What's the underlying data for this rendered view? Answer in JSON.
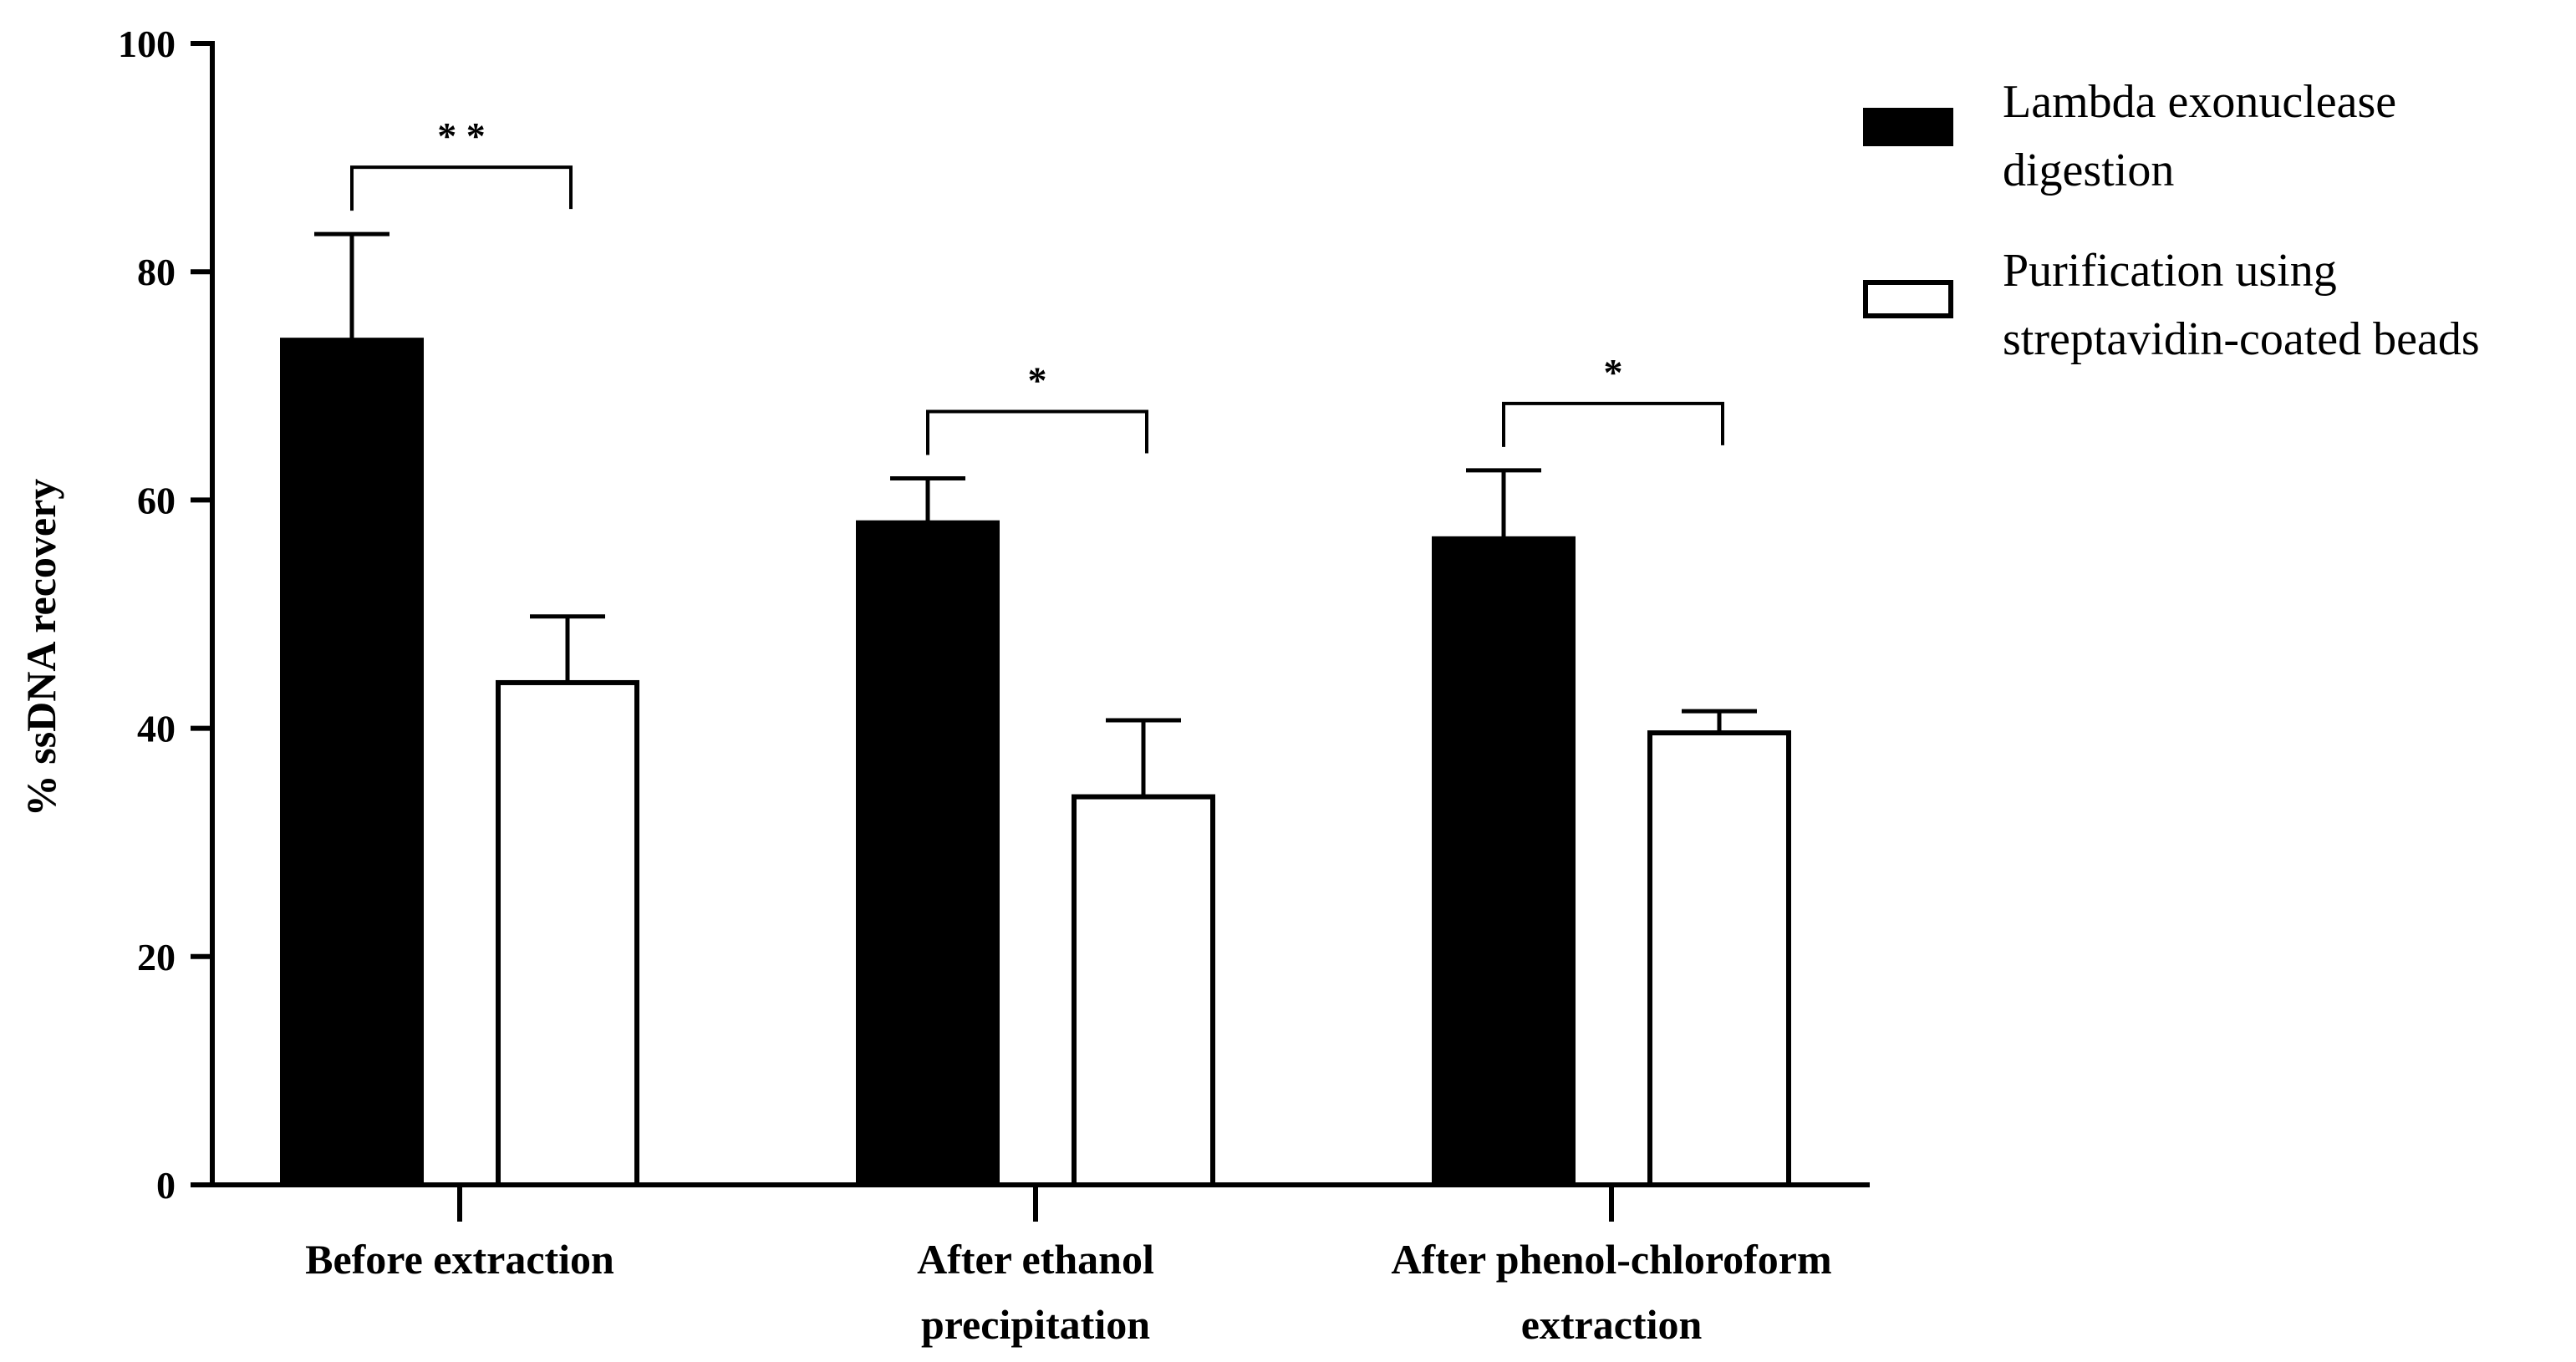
{
  "chart_data": {
    "type": "bar",
    "title": "",
    "xlabel": "",
    "ylabel": "% ssDNA recovery",
    "ylim": [
      0,
      100
    ],
    "yticks": [
      0,
      20,
      40,
      60,
      80,
      100
    ],
    "categories": [
      [
        "Before extraction"
      ],
      [
        "After ethanol",
        "precipitation"
      ],
      [
        "After phenol-chloroform",
        "extraction"
      ]
    ],
    "series": [
      {
        "name": [
          "Lambda exonuclease",
          "digestion"
        ],
        "fill": "#000000",
        "values": [
          74,
          58,
          56.6
        ],
        "error": [
          9.3,
          3.9,
          6.0
        ]
      },
      {
        "name": [
          "Purification using",
          "streptavidin-coated beads"
        ],
        "fill": "#ffffff",
        "values": [
          44,
          34,
          39.6
        ],
        "error": [
          5.8,
          6.7,
          1.9
        ]
      }
    ],
    "significance": [
      "* *",
      "*",
      "*"
    ],
    "legend_position": "top-right"
  }
}
